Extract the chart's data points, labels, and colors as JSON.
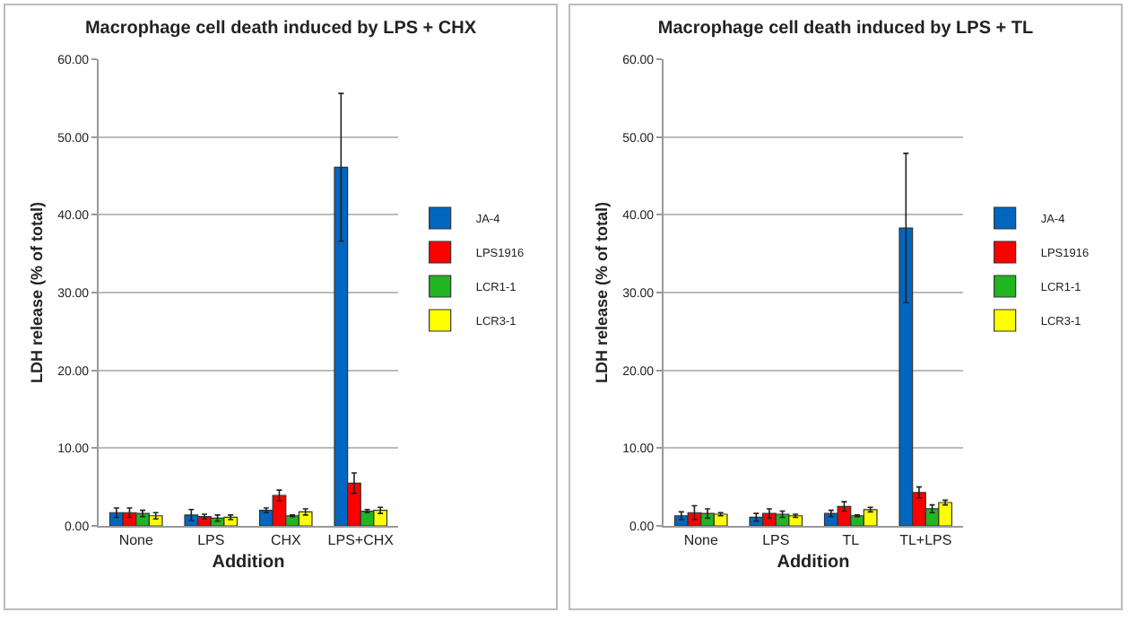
{
  "chart_data": [
    {
      "type": "bar",
      "title": "Macrophage cell death induced by LPS + CHX",
      "xlabel": "Addition",
      "ylabel": "LDH release (% of total)",
      "categories": [
        "None",
        "LPS",
        "CHX",
        "LPS+CHX"
      ],
      "series": [
        {
          "name": "JA-4",
          "color": "#0066c0",
          "values": [
            1.7,
            1.4,
            2.0,
            46.1
          ],
          "errors": [
            0.6,
            0.7,
            0.3,
            9.5
          ]
        },
        {
          "name": "LPS1916",
          "color": "#ff0000",
          "values": [
            1.7,
            1.2,
            3.9,
            5.5
          ],
          "errors": [
            0.6,
            0.3,
            0.7,
            1.3
          ]
        },
        {
          "name": "LCR1-1",
          "color": "#22b522",
          "values": [
            1.6,
            1.0,
            1.3,
            1.9
          ],
          "errors": [
            0.4,
            0.4,
            0.1,
            0.2
          ]
        },
        {
          "name": "LCR3-1",
          "color": "#ffff00",
          "values": [
            1.3,
            1.1,
            1.8,
            2.0
          ],
          "errors": [
            0.4,
            0.3,
            0.4,
            0.4
          ]
        }
      ],
      "ylim": [
        0,
        60
      ],
      "yticks": [
        {
          "value": 0,
          "label": "0.00"
        },
        {
          "value": 10,
          "label": "10.00"
        },
        {
          "value": 20,
          "label": "20.00"
        },
        {
          "value": 30,
          "label": "30.00"
        },
        {
          "value": 40,
          "label": "40.00"
        },
        {
          "value": 50,
          "label": "50.00"
        },
        {
          "value": 60,
          "label": "60.00"
        }
      ],
      "grid": "y",
      "legend": "right"
    },
    {
      "type": "bar",
      "title": "Macrophage cell death induced by LPS + TL",
      "xlabel": "Addition",
      "ylabel": "LDH release (% of total)",
      "categories": [
        "None",
        "LPS",
        "TL",
        "TL+LPS"
      ],
      "series": [
        {
          "name": "JA-4",
          "color": "#0066c0",
          "values": [
            1.3,
            1.1,
            1.6,
            38.3
          ],
          "errors": [
            0.5,
            0.5,
            0.4,
            9.6
          ]
        },
        {
          "name": "LPS1916",
          "color": "#ff0000",
          "values": [
            1.7,
            1.6,
            2.5,
            4.3
          ],
          "errors": [
            0.9,
            0.6,
            0.6,
            0.7
          ]
        },
        {
          "name": "LCR1-1",
          "color": "#22b522",
          "values": [
            1.6,
            1.5,
            1.3,
            2.2
          ],
          "errors": [
            0.6,
            0.4,
            0.1,
            0.5
          ]
        },
        {
          "name": "LCR3-1",
          "color": "#ffff00",
          "values": [
            1.5,
            1.3,
            2.1,
            3.0
          ],
          "errors": [
            0.2,
            0.2,
            0.3,
            0.3
          ]
        }
      ],
      "ylim": [
        0,
        60
      ],
      "yticks": [
        {
          "value": 0,
          "label": "0.00"
        },
        {
          "value": 10,
          "label": "10.00"
        },
        {
          "value": 20,
          "label": "20.00"
        },
        {
          "value": 30,
          "label": "30.00"
        },
        {
          "value": 40,
          "label": "40.00"
        },
        {
          "value": 50,
          "label": "50.00"
        },
        {
          "value": 60,
          "label": "60.00"
        }
      ],
      "grid": "y",
      "legend": "right"
    }
  ]
}
